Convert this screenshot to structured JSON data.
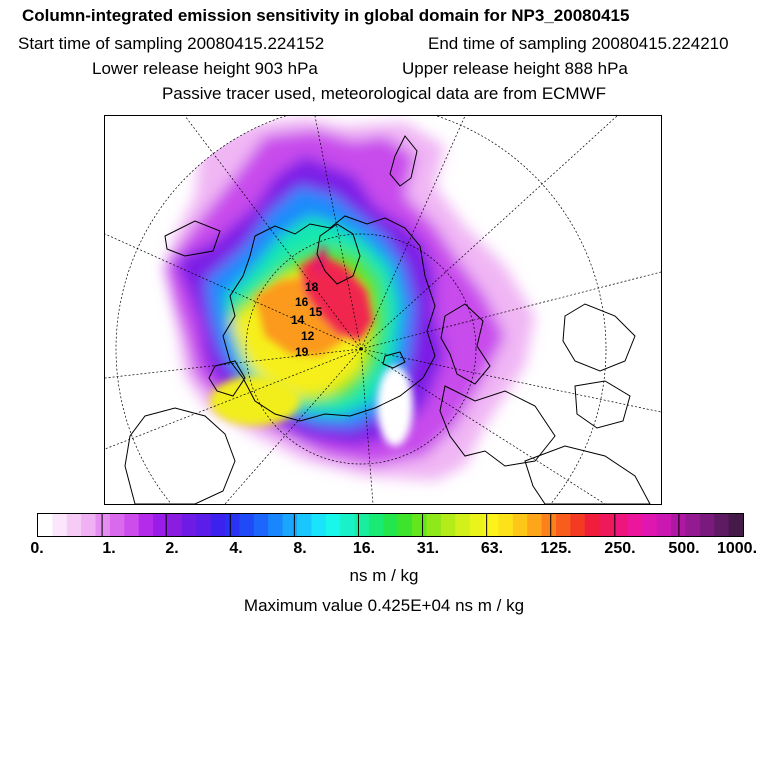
{
  "header": {
    "title": "Column-integrated emission sensitivity in global domain for NP3_20080415",
    "start_time": "Start time of sampling 20080415.224152",
    "end_time": "End time of sampling 20080415.224210",
    "lower_release": "Lower release height  903 hPa",
    "upper_release": "Upper release height  888 hPa",
    "tracer_note": "Passive tracer used, meteorological data are from ECMWF"
  },
  "map": {
    "projection": "polar stereographic",
    "trajectory_labels": [
      "18",
      "16",
      "15",
      "14",
      "12",
      "19"
    ]
  },
  "colorbar": {
    "tick_labels": [
      "0.",
      "1.",
      "2.",
      "4.",
      "8.",
      "16.",
      "31.",
      "63.",
      "125.",
      "250.",
      "500.",
      "1000."
    ],
    "colors": [
      "#ffffff",
      "#fbe6fb",
      "#f6ccf7",
      "#f0b1f4",
      "#e68df1",
      "#d96aee",
      "#cc4cec",
      "#b52bea",
      "#9a1ce8",
      "#8a1de0",
      "#6f1be6",
      "#5a1ee8",
      "#3c22ee",
      "#2a33f4",
      "#1f4af8",
      "#1c66fb",
      "#1a86fd",
      "#1aa6fd",
      "#19c6fd",
      "#19e4fb",
      "#19f6ea",
      "#19f2c8",
      "#19ee9f",
      "#19ea74",
      "#22e64b",
      "#3ee42b",
      "#64e61c",
      "#8ee81a",
      "#b4ec1a",
      "#d2f01a",
      "#eaf41a",
      "#fbf31a",
      "#fde21a",
      "#fdc71a",
      "#fda61a",
      "#fb821a",
      "#f85d1e",
      "#f43a22",
      "#f01e3a",
      "#ee185a",
      "#ee167c",
      "#ec169c",
      "#e016b0",
      "#cc18b2",
      "#b018a4",
      "#941a92",
      "#7a1a7c",
      "#5e1a62",
      "#441a48"
    ]
  },
  "units": "ns m / kg",
  "max_value": "Maximum value  0.425E+04 ns m / kg"
}
